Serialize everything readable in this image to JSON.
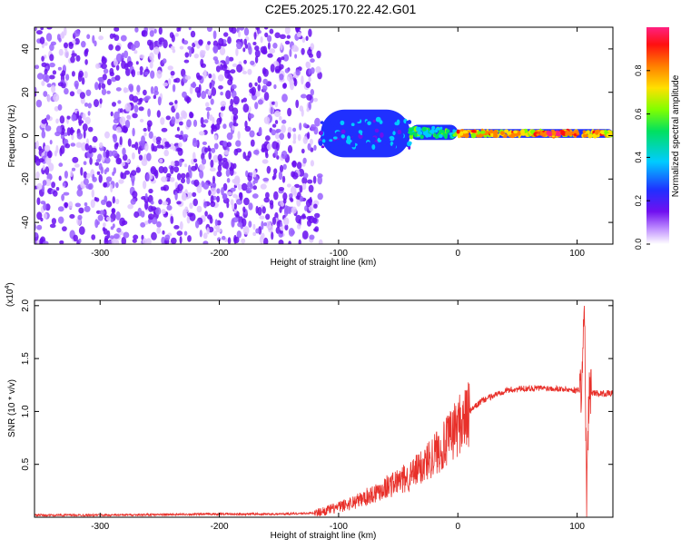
{
  "title": "C2E5.2025.170.22.42.G01",
  "colors": {
    "snr_line": "#e8302a",
    "axis": "#000000",
    "spectro_scatter_low": "#e0c8ff",
    "spectro_scatter_high": "#6a10f0"
  },
  "chart_data": [
    {
      "type": "heatmap",
      "title": "",
      "xlabel": "Height of straight line (km)",
      "ylabel": "Frequency (Hz)",
      "xlim": [
        -355,
        130
      ],
      "ylim": [
        -50,
        50
      ],
      "x_ticks": [
        -300,
        -200,
        -100,
        0,
        100
      ],
      "y_ticks": [
        -40,
        -20,
        0,
        20,
        40
      ],
      "colorbar": {
        "label": "Normalized spectral amplitude",
        "range": [
          0,
          1
        ],
        "ticks": [
          "0.0",
          "0.2",
          "0.4",
          "0.6",
          "0.8"
        ],
        "colormap": "rainbow (white-purple-blue-cyan-green-yellow-orange-red-magenta)"
      },
      "regions": [
        {
          "x": [
            -355,
            -115
          ],
          "y": [
            -50,
            50
          ],
          "amplitude": 0.05
        },
        {
          "x": [
            -115,
            -40
          ],
          "y": [
            -10,
            12
          ],
          "amplitude": 0.35
        },
        {
          "x": [
            -40,
            0
          ],
          "y": [
            -2,
            5
          ],
          "amplitude": 0.55
        },
        {
          "x": [
            0,
            130
          ],
          "y": [
            -1,
            3
          ],
          "amplitude": 0.8
        },
        {
          "x": [
            65,
            100
          ],
          "y": [
            0,
            2
          ],
          "amplitude": 0.95
        }
      ]
    },
    {
      "type": "line",
      "title": "",
      "xlabel": "Height of straight line (km)",
      "ylabel": "SNR (10 * v/v)",
      "scale_label": "(x10",
      "scale_exponent": "4",
      "scale_close": ")",
      "xlim": [
        -355,
        130
      ],
      "ylim": [
        0,
        2.05
      ],
      "x_ticks": [
        -300,
        -200,
        -100,
        0,
        100
      ],
      "y_ticks": [
        "0.5",
        "1.0",
        "1.5",
        "2.0"
      ],
      "series": [
        {
          "x": [
            -355,
            -300,
            -250,
            -200,
            -150,
            -120,
            -100,
            -80,
            -60,
            -40,
            -30,
            -20,
            -10,
            0,
            20,
            40,
            60,
            80,
            100,
            104,
            106,
            108,
            110,
            120,
            130
          ],
          "y": [
            0.02,
            0.02,
            0.025,
            0.03,
            0.03,
            0.04,
            0.1,
            0.18,
            0.3,
            0.4,
            0.5,
            0.62,
            0.72,
            0.9,
            1.1,
            1.2,
            1.22,
            1.22,
            1.2,
            1.22,
            2.05,
            0.15,
            1.18,
            1.17,
            1.17
          ]
        }
      ]
    }
  ]
}
